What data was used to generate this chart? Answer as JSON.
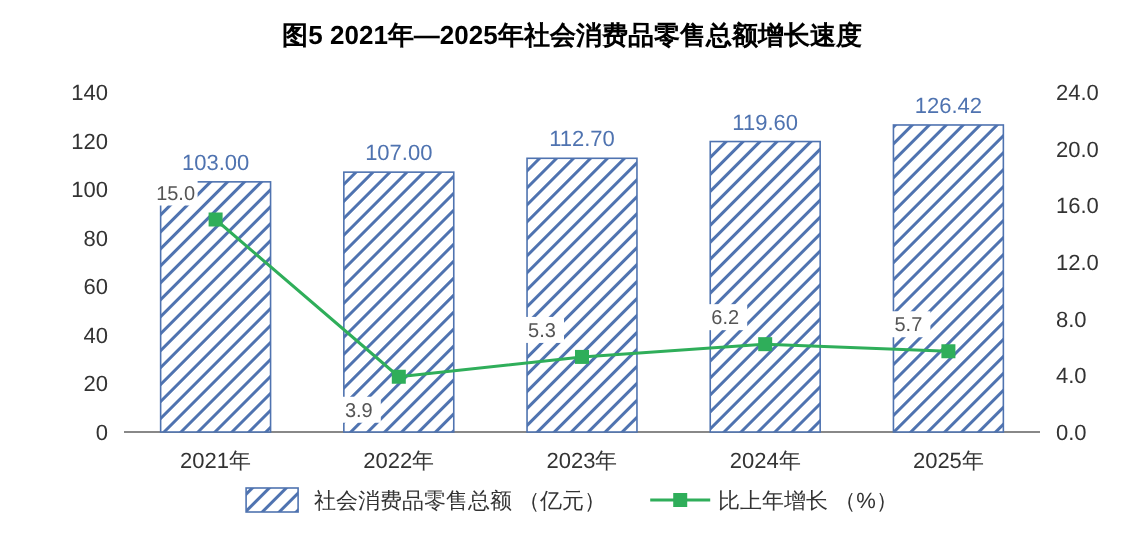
{
  "chart_data": {
    "type": "bar",
    "title": "图5  2021年—2025年社会消费品零售总额增长速度",
    "categories": [
      "2021年",
      "2022年",
      "2023年",
      "2024年",
      "2025年"
    ],
    "series": [
      {
        "name": "社会消费品零售总额 （亿元）",
        "color": "#4f73b0",
        "values": [
          103.0,
          107.0,
          112.7,
          119.6,
          126.42
        ],
        "value_labels": [
          "103.00",
          "107.00",
          "112.70",
          "119.60",
          "126.42"
        ]
      },
      {
        "name": "比上年增长 （%）",
        "type": "line",
        "axis": "y2",
        "color": "#2fae5a",
        "marker": "square",
        "values": [
          15.0,
          3.9,
          5.3,
          6.2,
          5.7
        ],
        "value_labels": [
          "15.0",
          "3.9",
          "5.3",
          "6.2",
          "5.7"
        ]
      }
    ],
    "ylim": [
      0,
      140
    ],
    "yticks": [
      0,
      20,
      40,
      60,
      80,
      100,
      120,
      140
    ],
    "y2lim": [
      0,
      24
    ],
    "y2ticks": [
      {
        "value": 0,
        "label": "0.0"
      },
      {
        "value": 4,
        "label": "4.0"
      },
      {
        "value": 8,
        "label": "8.0"
      },
      {
        "value": 12,
        "label": "12.0"
      },
      {
        "value": 16,
        "label": "16.0"
      },
      {
        "value": 20,
        "label": "20.0"
      },
      {
        "value": 24,
        "label": "24.0"
      }
    ],
    "legend": "bottom"
  }
}
